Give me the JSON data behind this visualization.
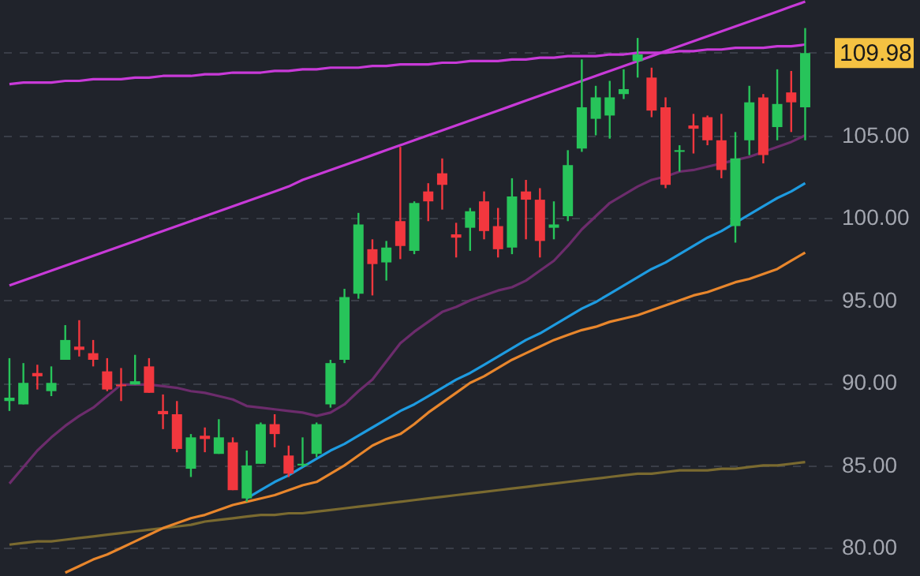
{
  "chart_data": {
    "type": "candlestick",
    "categories": [
      null,
      null,
      null,
      null,
      null,
      null,
      null,
      null,
      null,
      null,
      null,
      null,
      null,
      null,
      null,
      null,
      null,
      null,
      null,
      null,
      null,
      null,
      null,
      null,
      null,
      null,
      null,
      null,
      null,
      null,
      null,
      null,
      null,
      null,
      null,
      null,
      null,
      null,
      null,
      null,
      null,
      null,
      null,
      null,
      null,
      null,
      null,
      null,
      null,
      null,
      null,
      null,
      null,
      null,
      null,
      null,
      null,
      null
    ],
    "ohlc": [
      [
        88.9,
        91.5,
        88.3,
        89.1
      ],
      [
        88.7,
        91.2,
        88.7,
        90.0
      ],
      [
        90.6,
        91.1,
        89.6,
        90.4
      ],
      [
        89.5,
        91.0,
        89.2,
        90.0
      ],
      [
        91.4,
        93.5,
        91.4,
        92.6
      ],
      [
        92.2,
        93.8,
        91.6,
        92.0
      ],
      [
        91.8,
        92.6,
        91.0,
        91.4
      ],
      [
        90.7,
        91.5,
        89.5,
        89.6
      ],
      [
        89.9,
        90.9,
        88.9,
        89.8
      ],
      [
        89.9,
        91.7,
        89.9,
        90.1
      ],
      [
        91.0,
        91.5,
        89.4,
        89.4
      ],
      [
        88.3,
        89.3,
        87.2,
        88.1
      ],
      [
        88.1,
        88.9,
        85.8,
        86.0
      ],
      [
        84.8,
        86.9,
        84.3,
        86.7
      ],
      [
        86.8,
        87.3,
        85.8,
        86.6
      ],
      [
        85.7,
        87.8,
        85.7,
        86.7
      ],
      [
        86.4,
        86.7,
        83.5,
        83.5
      ],
      [
        83.0,
        85.9,
        82.8,
        85.0
      ],
      [
        85.1,
        87.6,
        85.1,
        87.5
      ],
      [
        87.5,
        88.1,
        86.1,
        86.9
      ],
      [
        85.6,
        86.2,
        84.3,
        84.5
      ],
      [
        85.0,
        86.7,
        84.9,
        85.1
      ],
      [
        85.7,
        87.6,
        85.5,
        87.5
      ],
      [
        88.7,
        91.4,
        88.5,
        91.2
      ],
      [
        91.4,
        95.7,
        91.2,
        95.2
      ],
      [
        95.4,
        100.3,
        95.1,
        99.6
      ],
      [
        98.1,
        98.7,
        95.3,
        97.2
      ],
      [
        97.3,
        98.6,
        96.2,
        98.2
      ],
      [
        99.8,
        104.3,
        97.5,
        98.3
      ],
      [
        98.0,
        101.0,
        97.8,
        100.9
      ],
      [
        101.6,
        102.1,
        99.8,
        101.0
      ],
      [
        102.7,
        103.6,
        100.5,
        102.0
      ],
      [
        99.0,
        99.7,
        97.6,
        98.8
      ],
      [
        99.4,
        100.6,
        98.0,
        100.4
      ],
      [
        101.0,
        101.6,
        98.7,
        99.2
      ],
      [
        99.5,
        100.6,
        97.6,
        98.1
      ],
      [
        98.2,
        102.4,
        97.8,
        101.3
      ],
      [
        101.6,
        102.3,
        98.7,
        101.1
      ],
      [
        101.1,
        101.8,
        97.6,
        98.6
      ],
      [
        99.4,
        101.0,
        98.7,
        99.6
      ],
      [
        100.1,
        104.1,
        99.8,
        103.2
      ],
      [
        104.2,
        109.6,
        104.0,
        106.7
      ],
      [
        106.0,
        108.0,
        105.0,
        107.3
      ],
      [
        106.2,
        108.3,
        104.8,
        107.3
      ],
      [
        107.5,
        109.0,
        107.2,
        107.8
      ],
      [
        109.5,
        110.9,
        108.5,
        109.9
      ],
      [
        108.5,
        109.1,
        106.1,
        106.5
      ],
      [
        106.7,
        107.3,
        101.8,
        102.0
      ],
      [
        104.0,
        104.4,
        102.8,
        104.1
      ],
      [
        105.6,
        106.3,
        103.9,
        105.4
      ],
      [
        106.1,
        106.2,
        104.4,
        104.7
      ],
      [
        104.7,
        106.3,
        102.4,
        102.9
      ],
      [
        99.5,
        105.2,
        98.5,
        103.6
      ],
      [
        104.7,
        108.0,
        103.8,
        107.0
      ],
      [
        107.3,
        107.5,
        103.3,
        103.8
      ],
      [
        105.5,
        109.0,
        104.7,
        106.9
      ],
      [
        107.6,
        108.9,
        105.2,
        107.0
      ],
      [
        106.7,
        111.5,
        104.7,
        109.98
      ]
    ],
    "series": [
      {
        "type": "line",
        "color": "#7a6a30",
        "values": [
          80.2,
          80.3,
          80.4,
          80.4,
          80.5,
          80.6,
          80.7,
          80.8,
          80.9,
          81.0,
          81.1,
          81.2,
          81.3,
          81.4,
          81.6,
          81.7,
          81.8,
          81.9,
          82.0,
          82.0,
          82.1,
          82.1,
          82.2,
          82.3,
          82.4,
          82.5,
          82.6,
          82.7,
          82.8,
          82.9,
          83.0,
          83.1,
          83.2,
          83.3,
          83.4,
          83.5,
          83.6,
          83.7,
          83.8,
          83.9,
          84.0,
          84.1,
          84.2,
          84.3,
          84.4,
          84.5,
          84.5,
          84.6,
          84.7,
          84.7,
          84.7,
          84.8,
          84.8,
          84.9,
          85.0,
          85.0,
          85.1,
          85.2
        ]
      },
      {
        "type": "line",
        "color": "#e8862c",
        "values": [
          null,
          null,
          null,
          null,
          78.5,
          78.9,
          79.3,
          79.6,
          80.0,
          80.4,
          80.8,
          81.2,
          81.5,
          81.8,
          82.0,
          82.3,
          82.6,
          82.8,
          83.0,
          83.2,
          83.5,
          83.8,
          84.0,
          84.5,
          85.0,
          85.6,
          86.2,
          86.6,
          86.9,
          87.5,
          88.2,
          88.8,
          89.4,
          90.0,
          90.4,
          90.9,
          91.4,
          91.8,
          92.2,
          92.6,
          92.9,
          93.2,
          93.4,
          93.7,
          93.9,
          94.1,
          94.4,
          94.7,
          95.0,
          95.3,
          95.5,
          95.8,
          96.1,
          96.3,
          96.6,
          96.9,
          97.4,
          97.9
        ]
      },
      {
        "type": "line",
        "color": "#6c2c6c",
        "values": [
          83.9,
          84.9,
          85.9,
          86.7,
          87.4,
          88.0,
          88.5,
          89.2,
          89.9,
          89.9,
          89.9,
          89.8,
          89.7,
          89.5,
          89.4,
          89.2,
          89.0,
          88.6,
          88.5,
          88.4,
          88.3,
          88.2,
          88.0,
          88.2,
          88.7,
          89.5,
          90.2,
          91.3,
          92.4,
          93.1,
          93.7,
          94.3,
          94.6,
          95.0,
          95.3,
          95.6,
          95.8,
          96.2,
          96.8,
          97.4,
          98.3,
          99.3,
          100.1,
          100.9,
          101.4,
          101.9,
          102.3,
          102.5,
          102.8,
          102.9,
          103.1,
          103.3,
          103.5,
          103.7,
          104.0,
          104.3,
          104.6,
          105.0
        ]
      },
      {
        "type": "line",
        "color": "#1e9be0",
        "values": [
          null,
          null,
          null,
          null,
          null,
          null,
          null,
          null,
          null,
          null,
          null,
          null,
          null,
          null,
          null,
          null,
          null,
          83.0,
          83.5,
          84.0,
          84.4,
          84.9,
          85.4,
          85.9,
          86.3,
          86.8,
          87.3,
          87.8,
          88.3,
          88.7,
          89.2,
          89.7,
          90.2,
          90.6,
          91.1,
          91.6,
          92.1,
          92.6,
          93.0,
          93.5,
          94.0,
          94.5,
          94.9,
          95.4,
          95.9,
          96.4,
          96.9,
          97.3,
          97.8,
          98.3,
          98.8,
          99.2,
          99.7,
          100.2,
          100.7,
          101.2,
          101.6,
          102.1
        ]
      },
      {
        "type": "line",
        "color": "#c83ad8",
        "values": [
          95.9,
          96.2,
          96.5,
          96.8,
          97.1,
          97.4,
          97.7,
          98.0,
          98.3,
          98.6,
          98.9,
          99.2,
          99.5,
          99.8,
          100.1,
          100.4,
          100.7,
          101.0,
          101.3,
          101.6,
          101.9,
          102.3,
          102.6,
          102.9,
          103.2,
          103.5,
          103.8,
          104.1,
          104.4,
          104.7,
          105.0,
          105.3,
          105.6,
          105.9,
          106.2,
          106.5,
          106.8,
          107.1,
          107.4,
          107.7,
          108.0,
          108.3,
          108.6,
          108.9,
          109.2,
          109.5,
          109.8,
          110.1,
          110.4,
          110.7,
          111.0,
          111.3,
          111.6,
          111.9,
          112.2,
          112.5,
          112.8,
          113.1
        ]
      },
      {
        "type": "line",
        "color": "#c83ad8",
        "values": [
          108.1,
          108.2,
          108.2,
          108.2,
          108.3,
          108.3,
          108.4,
          108.4,
          108.4,
          108.5,
          108.5,
          108.6,
          108.6,
          108.6,
          108.7,
          108.7,
          108.8,
          108.8,
          108.8,
          108.9,
          108.9,
          109.0,
          109.0,
          109.1,
          109.1,
          109.1,
          109.2,
          109.2,
          109.3,
          109.3,
          109.3,
          109.4,
          109.4,
          109.5,
          109.5,
          109.5,
          109.6,
          109.6,
          109.7,
          109.7,
          109.8,
          109.8,
          109.8,
          109.9,
          109.9,
          110.0,
          110.0,
          110.0,
          110.1,
          110.1,
          110.2,
          110.2,
          110.3,
          110.3,
          110.3,
          110.4,
          110.4,
          110.5
        ]
      }
    ],
    "ylim": [
      78.3,
      113.2
    ],
    "yticks": [
      {
        "value": 80,
        "label": "80.00"
      },
      {
        "value": 85,
        "label": "85.00"
      },
      {
        "value": 90,
        "label": "90.00"
      },
      {
        "value": 95,
        "label": "95.00"
      },
      {
        "value": 100,
        "label": "100.00"
      },
      {
        "value": 105,
        "label": "105.00"
      },
      {
        "value": 110,
        "label": null
      }
    ],
    "tick_labels": "y",
    "grid": "y",
    "annotations": [
      "109.98"
    ]
  }
}
